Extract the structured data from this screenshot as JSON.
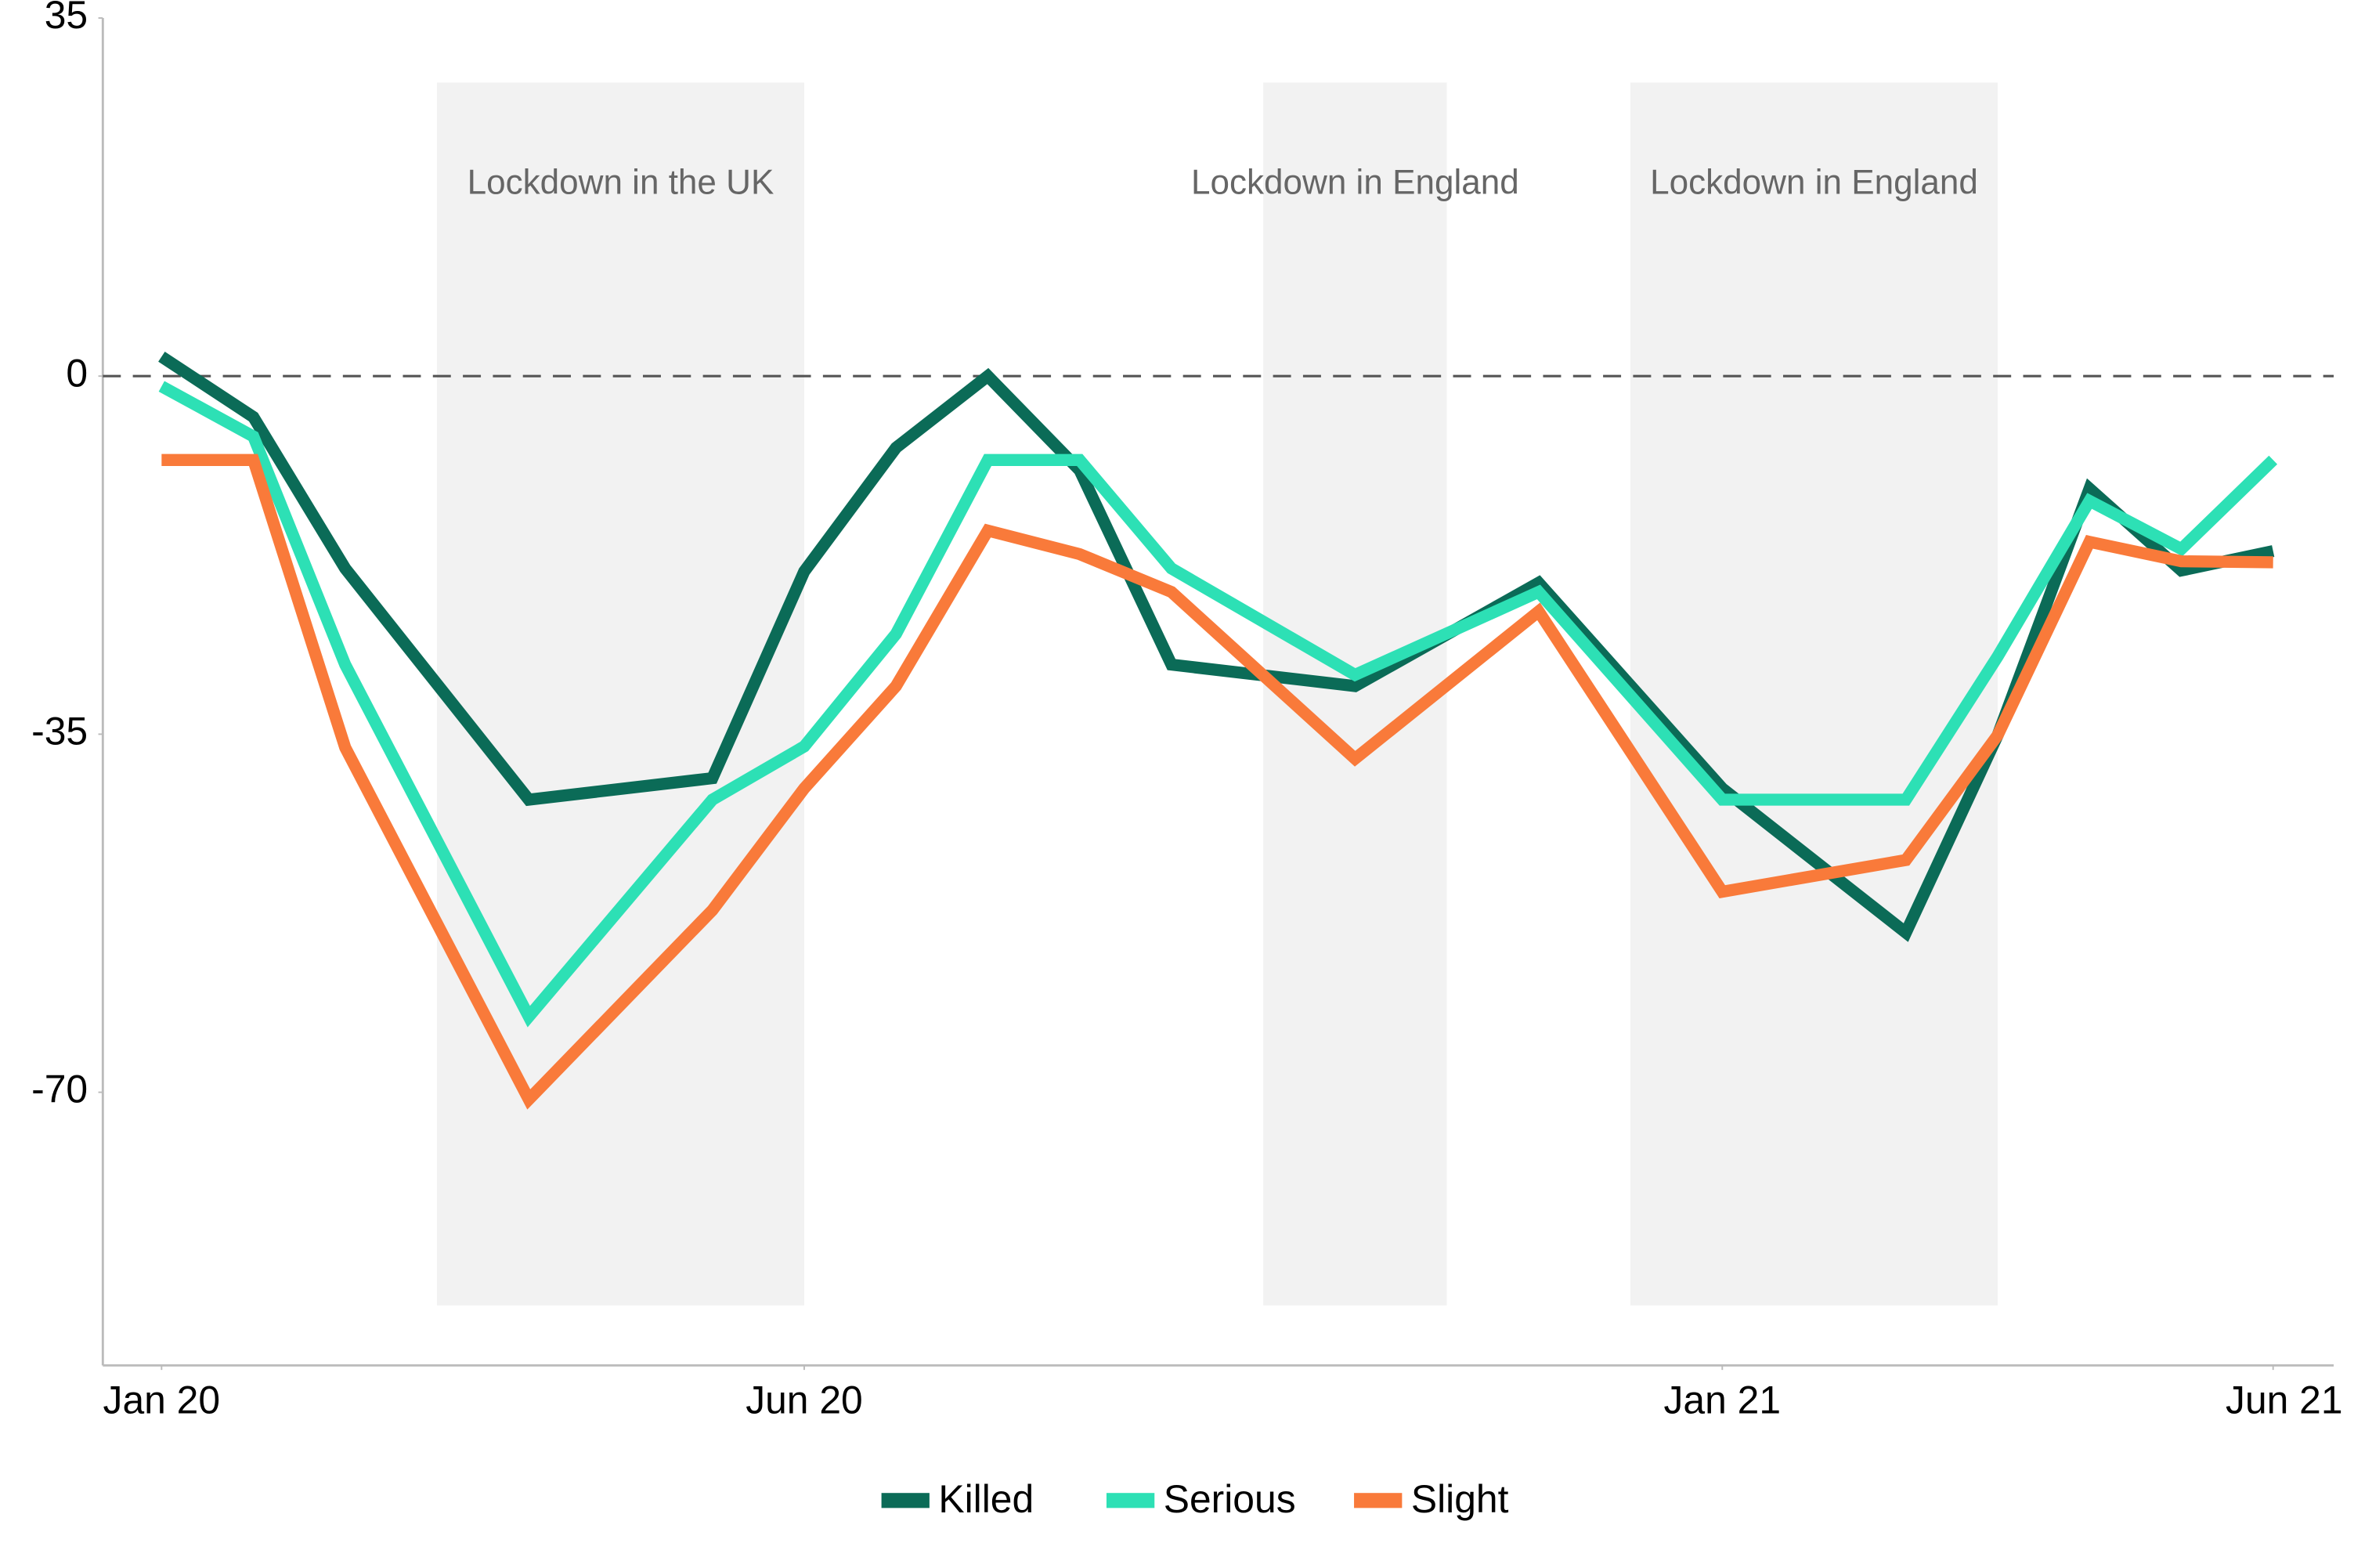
{
  "chart_data": {
    "type": "line",
    "x": [
      0,
      1,
      2,
      4,
      6,
      7,
      8,
      9,
      10,
      11,
      13,
      15,
      17,
      19,
      20,
      21,
      22,
      23
    ],
    "xlim": [
      -0.64,
      23.66
    ],
    "xticks": [
      {
        "value": 0,
        "label": "Jan 20"
      },
      {
        "value": 7,
        "label": "Jun 20"
      },
      {
        "value": 17,
        "label": "Jan 21"
      },
      {
        "value": 23,
        "label": "Jun 21"
      }
    ],
    "ylim": [
      -96.7,
      35
    ],
    "yticks": [
      35,
      0,
      -35,
      -70
    ],
    "reference_line": 0,
    "shaded_regions": [
      {
        "label": "Lockdown in the UK",
        "x": [
          3,
          7
        ]
      },
      {
        "label": "Lockdown in England",
        "x": [
          12,
          14
        ]
      },
      {
        "label": "Lockdown in England",
        "x": [
          16,
          20
        ]
      }
    ],
    "legend": "bottom",
    "series": [
      {
        "name": "Killed",
        "color": "#0b6b57",
        "values": [
          1.9,
          -4.0,
          -18.8,
          -41.4,
          -39.3,
          -19.1,
          -7.0,
          0,
          -9.2,
          -28.2,
          -30.3,
          -20.2,
          -40.3,
          -54.4,
          -35.1,
          -11.0,
          -19.0,
          -17.1
        ]
      },
      {
        "name": "Serious",
        "color": "#2de0b5",
        "values": [
          -1.0,
          -5.9,
          -28.2,
          -62.6,
          -41.4,
          -36.2,
          -25.2,
          -8.2,
          -8.2,
          -18.8,
          -29.2,
          -21.1,
          -41.4,
          -41.4,
          -27.4,
          -12.2,
          -16.9,
          -8.2
        ]
      },
      {
        "name": "Slight",
        "color": "#f97a3a",
        "values": [
          -8.2,
          -8.2,
          -36.3,
          -70.7,
          -52.2,
          -40.3,
          -30.3,
          -15.1,
          -17.4,
          -21.1,
          -37.4,
          -23.0,
          -50.4,
          -47.3,
          -35.1,
          -16.2,
          -18.1,
          -18.2
        ]
      }
    ]
  }
}
